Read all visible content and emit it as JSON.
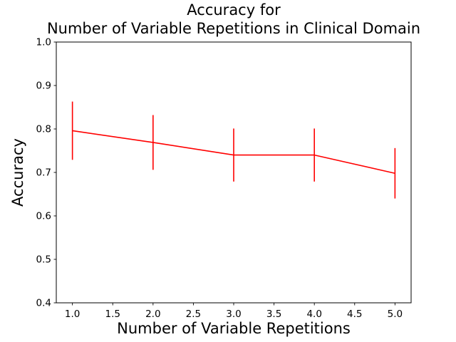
{
  "chart_data": {
    "type": "line",
    "title": "Accuracy for\nNumber of Variable Repetitions in Clinical Domain",
    "title_lines": [
      "Accuracy for",
      "Number of Variable Repetitions in Clinical Domain"
    ],
    "xlabel": "Number of Variable Repetitions",
    "ylabel": "Accuracy",
    "x": [
      1,
      2,
      3,
      4,
      5
    ],
    "values": [
      0.796,
      0.769,
      0.74,
      0.74,
      0.698
    ],
    "yerr": [
      0.067,
      0.063,
      0.061,
      0.061,
      0.058
    ],
    "xlim": [
      0.8,
      5.2
    ],
    "ylim": [
      0.4,
      1.0
    ],
    "xticks": [
      1.0,
      1.5,
      2.0,
      2.5,
      3.0,
      3.5,
      4.0,
      4.5,
      5.0
    ],
    "yticks": [
      0.4,
      0.5,
      0.6,
      0.7,
      0.8,
      0.9,
      1.0
    ],
    "tick_label_decimals": 1,
    "line_color": "#ff0000",
    "axis_color": "#000000",
    "background_color": "#ffffff",
    "grid": false,
    "legend": null,
    "error_bar_caps": false
  }
}
